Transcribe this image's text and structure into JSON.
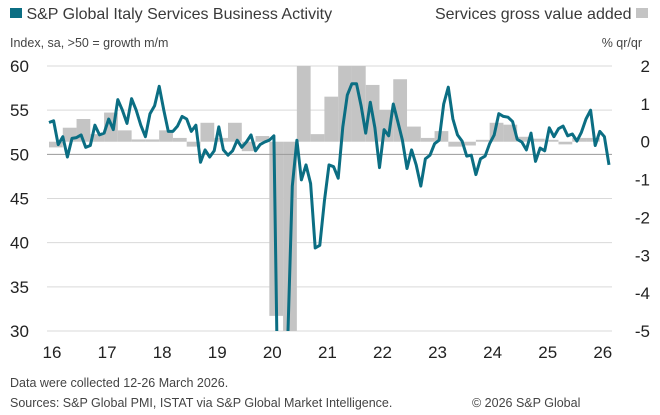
{
  "chart_data": {
    "type": "bar+line",
    "legend": {
      "left": "S&P Global Italy Services Business Activity",
      "right": "Services gross value added"
    },
    "ylabel_left": "Index, sa, >50 = growth m/m",
    "ylabel_right": "% qr/qr",
    "ylim_left": [
      30,
      60
    ],
    "ylim_right": [
      -5,
      2
    ],
    "yticks_left": [
      "30",
      "35",
      "40",
      "45",
      "50",
      "55",
      "60"
    ],
    "yticks_right": [
      "-5",
      "-4",
      "-3",
      "-2",
      "-1",
      "0",
      "1",
      "2"
    ],
    "xticks": [
      "16",
      "17",
      "18",
      "19",
      "20",
      "21",
      "22",
      "23",
      "24",
      "25",
      "26"
    ],
    "grid": true,
    "colors": {
      "line": "#0b6e83",
      "bars": "#c4c4c4"
    },
    "line_series": {
      "name": "S&P Global Italy Services Business Activity",
      "start": "2016-01",
      "frequency": "monthly",
      "values": [
        53.6,
        53.8,
        51.1,
        52.0,
        49.7,
        51.8,
        51.9,
        52.2,
        50.8,
        51.0,
        53.3,
        52.2,
        52.4,
        54.0,
        52.8,
        56.2,
        55.0,
        53.5,
        56.3,
        55.0,
        53.3,
        52.0,
        54.6,
        55.5,
        57.7,
        55.0,
        52.6,
        52.6,
        53.2,
        54.3,
        54.0,
        52.6,
        53.3,
        49.1,
        50.5,
        49.7,
        50.4,
        53.1,
        50.5,
        49.9,
        50.4,
        51.6,
        50.8,
        51.4,
        52.2,
        50.4,
        51.1,
        51.4,
        51.6,
        52.1,
        17.4,
        10.8,
        28.9,
        46.4,
        51.6,
        47.1,
        48.8,
        46.7,
        39.4,
        39.7,
        44.7,
        48.8,
        48.6,
        47.3,
        53.1,
        56.7,
        58.0,
        58.0,
        55.5,
        52.4,
        55.9,
        53.0,
        48.5,
        52.8,
        52.1,
        55.7,
        53.7,
        51.6,
        48.4,
        50.5,
        48.8,
        46.4,
        49.5,
        49.9,
        51.2,
        51.6,
        55.7,
        57.6,
        54.0,
        52.2,
        51.5,
        49.8,
        49.9,
        47.7,
        49.5,
        49.8,
        51.2,
        52.2,
        54.6,
        54.3,
        54.2,
        53.7,
        51.7,
        51.4,
        50.5,
        52.4,
        49.2,
        50.7,
        50.4,
        53.0,
        52.0,
        52.9,
        53.2,
        52.1,
        52.3,
        51.5,
        52.5,
        54.0,
        55.0,
        51.0,
        52.6,
        52.0,
        48.8
      ]
    },
    "bar_series": {
      "name": "Services gross value added",
      "start": "2016-Q1",
      "frequency": "quarterly",
      "values": [
        -0.15,
        0.37,
        0.6,
        0.2,
        0.77,
        0.3,
        0.06,
        0.06,
        0.3,
        0.1,
        -0.13,
        0.5,
        0.1,
        0.5,
        -0.25,
        0.15,
        -4.6,
        -5.5,
        2.5,
        0.2,
        1.19,
        2.5,
        2.2,
        1.5,
        0.84,
        1.65,
        0.4,
        0.1,
        0.28,
        -0.13,
        -0.1,
        0.05,
        0.5,
        0.45,
        0.13,
        0.08,
        0.05,
        -0.07,
        0.1,
        0.1
      ]
    }
  },
  "footer": {
    "note": "Data were collected 12-26 March 2026.",
    "source": "Sources: S&P Global PMI, ISTAT via S&P Global Market Intelligence.",
    "copyright": "© 2026 S&P Global"
  }
}
